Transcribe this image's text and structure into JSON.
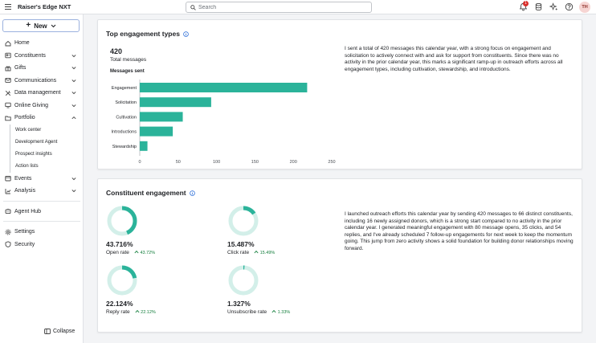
{
  "app": {
    "title": "Raiser's Edge NXT"
  },
  "search": {
    "placeholder": "Search",
    "value": ""
  },
  "topbar": {
    "notification_count": "1",
    "avatar_initials": "TH"
  },
  "sidebar": {
    "new_label": "New",
    "items": [
      {
        "label": "Home",
        "icon": "home-icon",
        "chevron": false
      },
      {
        "label": "Constituents",
        "icon": "people-icon",
        "chevron": true
      },
      {
        "label": "Gifts",
        "icon": "gift-icon",
        "chevron": true
      },
      {
        "label": "Communications",
        "icon": "mail-icon",
        "chevron": true
      },
      {
        "label": "Data management",
        "icon": "tools-icon",
        "chevron": true
      },
      {
        "label": "Online Giving",
        "icon": "monitor-icon",
        "chevron": true
      },
      {
        "label": "Portfolio",
        "icon": "folder-icon",
        "chevron": true,
        "expanded": true
      }
    ],
    "portfolio_sub": [
      "Work center",
      "Development Agent",
      "Prospect insights",
      "Action lists"
    ],
    "items2": [
      {
        "label": "Events",
        "icon": "calendar-icon",
        "chevron": true
      },
      {
        "label": "Analysis",
        "icon": "chart-icon",
        "chevron": true
      }
    ],
    "items3": [
      {
        "label": "Agent Hub",
        "icon": "agent-icon"
      }
    ],
    "items4": [
      {
        "label": "Settings",
        "icon": "gear-icon"
      },
      {
        "label": "Security",
        "icon": "shield-icon"
      }
    ],
    "collapse_label": "Collapse"
  },
  "engagement_types": {
    "title": "Top engagement types",
    "total_value": "420",
    "total_label": "Total messages",
    "chart_label": "Messages sent",
    "summary": "I sent a total of 420 messages this calendar year, with a strong focus on engagement and solicitation to actively connect with and ask for support from constituents. Since there was no activity in the prior calendar year, this marks a significant ramp-up in outreach efforts across all engagement types, including cultivation, stewardship, and introductions."
  },
  "chart_data": {
    "type": "bar",
    "orientation": "horizontal",
    "title": "Messages sent",
    "categories": [
      "Engagement",
      "Solicitation",
      "Cultivation",
      "Introductions",
      "Stewardship"
    ],
    "values": [
      218,
      93,
      56,
      43,
      10
    ],
    "xlim": [
      0,
      250
    ],
    "xticks": [
      0,
      50,
      100,
      150,
      200,
      250
    ],
    "grid": false,
    "bar_color": "#2bb39a"
  },
  "constituent_engagement": {
    "title": "Constituent engagement",
    "metrics": [
      {
        "value": "43.716%",
        "label": "Open rate",
        "trend": "43.72%",
        "fraction": 0.437
      },
      {
        "value": "15.487%",
        "label": "Click rate",
        "trend": "15.49%",
        "fraction": 0.155
      },
      {
        "value": "22.124%",
        "label": "Reply rate",
        "trend": "22.12%",
        "fraction": 0.221
      },
      {
        "value": "1.327%",
        "label": "Unsubscribe rate",
        "trend": "1.33%",
        "fraction": 0.013
      }
    ],
    "summary": "I launched outreach efforts this calendar year by sending 420 messages to 66 distinct constituents, including 16 newly assigned donors, which is a strong start compared to no activity in the prior calendar year. I generated meaningful engagement with 80 message opens, 35 clicks, and 54 replies, and I've already scheduled 7 follow-up engagements for next week to keep the momentum going. This jump from zero activity shows a solid foundation for building donor relationships moving forward."
  },
  "colors": {
    "accent": "#2bb39a",
    "ring_track": "#d3efe9",
    "trend_up": "#137e3c",
    "badge": "#d9302c"
  }
}
